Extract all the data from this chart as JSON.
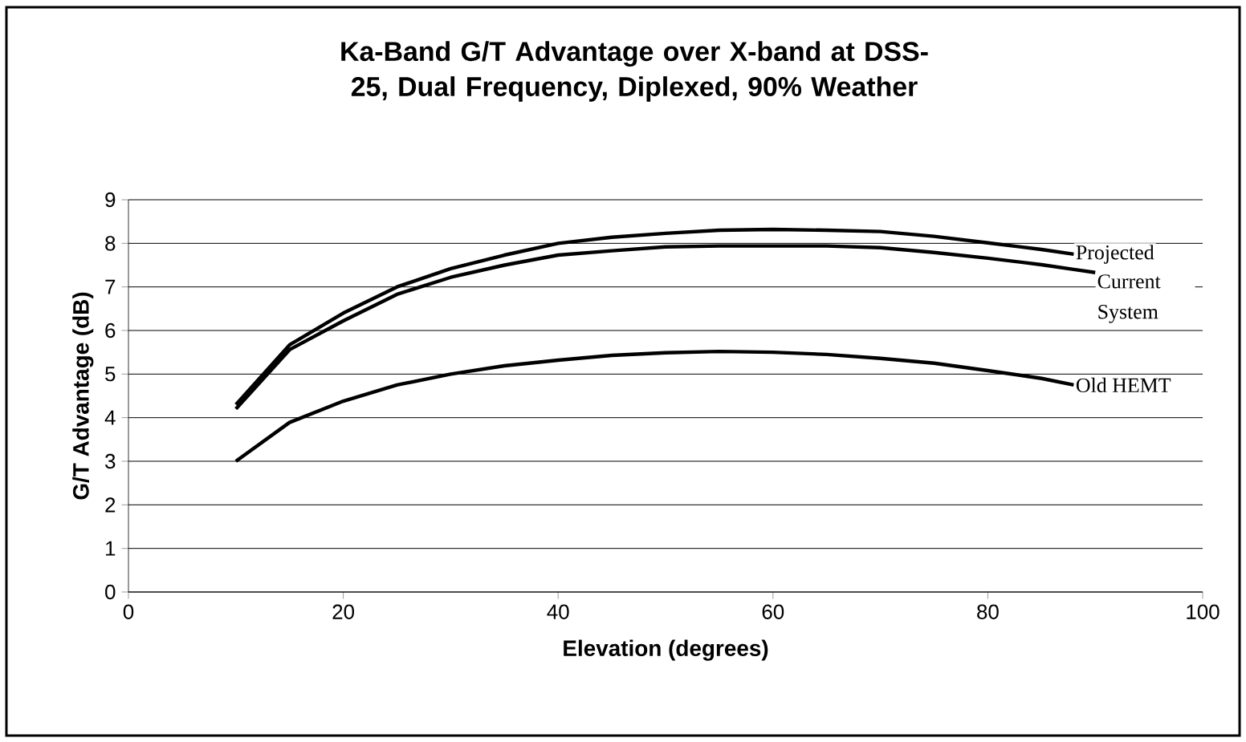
{
  "chart_data": {
    "type": "line",
    "title": "Ka-Band G/T Advantage over X-band at DSS-25, Dual Frequency, Diplexed, 90% Weather",
    "xlabel": "Elevation (degrees)",
    "ylabel": "G/T Advantage (dB)",
    "xlim": [
      0,
      100
    ],
    "xticks": [
      0,
      20,
      40,
      60,
      80,
      100
    ],
    "ylim": [
      0,
      9
    ],
    "yticks": [
      0,
      1,
      2,
      3,
      4,
      5,
      6,
      7,
      8,
      9
    ],
    "grid": "y",
    "legend": false,
    "marker": "none",
    "line_style": "solid",
    "series": [
      {
        "name": "Projected",
        "color": "#000000",
        "x": [
          10,
          15,
          20,
          25,
          30,
          35,
          40,
          45,
          50,
          55,
          60,
          65,
          70,
          75,
          80,
          85,
          88
        ],
        "values": [
          4.3,
          5.67,
          6.4,
          7.0,
          7.42,
          7.73,
          8.0,
          8.14,
          8.23,
          8.3,
          8.32,
          8.3,
          8.27,
          8.16,
          8.01,
          7.86,
          7.75
        ]
      },
      {
        "name": "Current System",
        "color": "#000000",
        "x": [
          10,
          15,
          20,
          25,
          30,
          35,
          40,
          45,
          50,
          55,
          60,
          65,
          70,
          75,
          80,
          85,
          88,
          90
        ],
        "values": [
          4.2,
          5.56,
          6.22,
          6.83,
          7.22,
          7.5,
          7.73,
          7.83,
          7.92,
          7.94,
          7.94,
          7.94,
          7.9,
          7.79,
          7.66,
          7.51,
          7.4,
          7.33
        ]
      },
      {
        "name": "Old HEMT",
        "color": "#000000",
        "x": [
          10,
          15,
          20,
          25,
          30,
          35,
          40,
          45,
          50,
          55,
          60,
          65,
          70,
          75,
          80,
          85,
          88
        ],
        "values": [
          3.0,
          3.89,
          4.38,
          4.75,
          5.0,
          5.19,
          5.32,
          5.43,
          5.49,
          5.52,
          5.5,
          5.45,
          5.36,
          5.25,
          5.08,
          4.9,
          4.75
        ]
      }
    ]
  }
}
